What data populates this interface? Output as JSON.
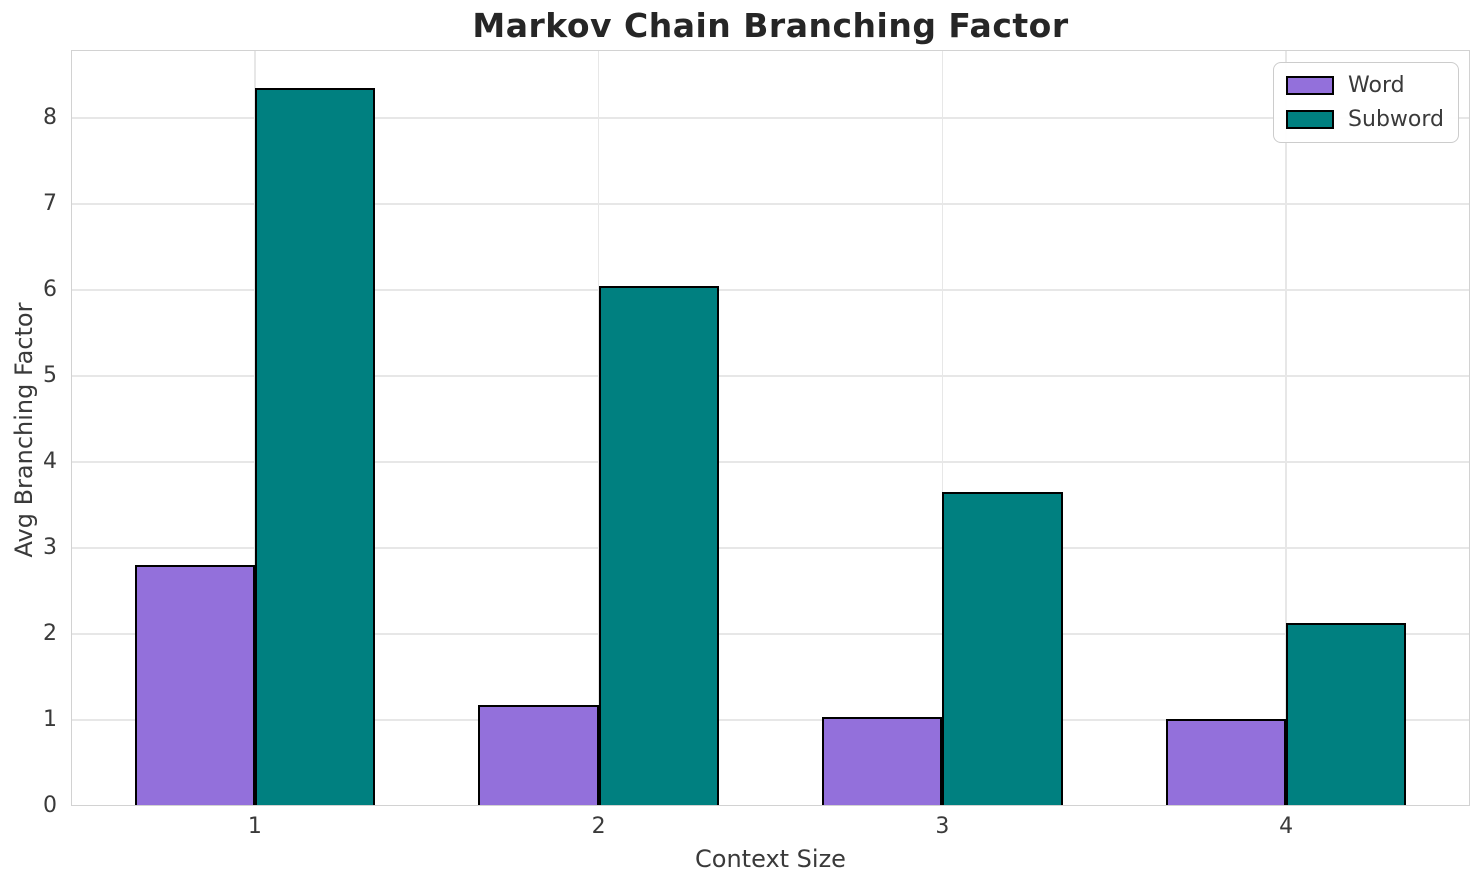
{
  "chart_data": {
    "type": "bar",
    "title": "Markov Chain Branching Factor",
    "xlabel": "Context Size",
    "ylabel": "Avg Branching Factor",
    "categories": [
      "1",
      "2",
      "3",
      "4"
    ],
    "series": [
      {
        "name": "Word",
        "color": "#9370DB",
        "values": [
          2.8,
          1.18,
          1.03,
          1.01
        ]
      },
      {
        "name": "Subword",
        "color": "#008080",
        "values": [
          8.35,
          6.05,
          3.65,
          2.13
        ]
      }
    ],
    "ylim": [
      0,
      8.79
    ],
    "yticks": [
      0,
      1,
      2,
      3,
      4,
      5,
      6,
      7,
      8
    ],
    "bar_edge_color": "#000000",
    "grid": true,
    "legend_position": "upper right",
    "colors": {
      "grid": "#e7e7e7",
      "spine": "#d2d2d2",
      "text": "#3a3a3a",
      "title": "#262626"
    }
  }
}
